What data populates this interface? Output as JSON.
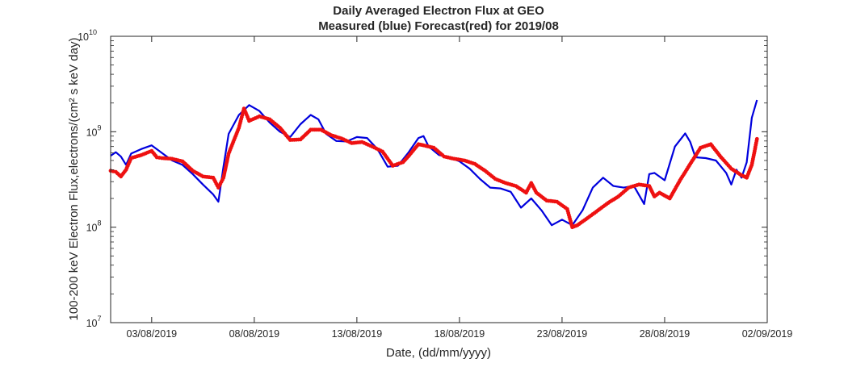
{
  "chart_data": {
    "type": "line",
    "title": "Daily Averaged Electron Flux at GEO",
    "subtitle": "Measured (blue) Forecast(red) for 2019/08",
    "xlabel": "Date, (dd/mm/yyyy)",
    "ylabel": "100-200 keV Electron Flux,electrons/(cm² s keV day)",
    "y_scale": "log",
    "ylim": [
      10000000,
      10000000000
    ],
    "xlim": [
      "2019-08-01",
      "2019-09-02"
    ],
    "grid": false,
    "x_ticks": [
      {
        "date": "2019-08-03",
        "label": "03/08/2019"
      },
      {
        "date": "2019-08-08",
        "label": "08/08/2019"
      },
      {
        "date": "2019-08-13",
        "label": "13/08/2019"
      },
      {
        "date": "2019-08-18",
        "label": "18/08/2019"
      },
      {
        "date": "2019-08-23",
        "label": "23/08/2019"
      },
      {
        "date": "2019-08-28",
        "label": "28/08/2019"
      },
      {
        "date": "2019-09-02",
        "label": "02/09/2019"
      }
    ],
    "y_ticks": [
      {
        "value": 10000000,
        "base": "10",
        "exp": "7"
      },
      {
        "value": 100000000,
        "base": "10",
        "exp": "8"
      },
      {
        "value": 1000000000,
        "base": "10",
        "exp": "9"
      },
      {
        "value": 10000000000,
        "base": "10",
        "exp": "10"
      }
    ],
    "series": [
      {
        "color": "#0000dd",
        "style": "line",
        "points": [
          [
            "2019-08-01 00:00",
            560000000.0
          ],
          [
            "2019-08-01 06:00",
            610000000.0
          ],
          [
            "2019-08-01 12:00",
            550000000.0
          ],
          [
            "2019-08-01 18:00",
            450000000.0
          ],
          [
            "2019-08-02 00:00",
            590000000.0
          ],
          [
            "2019-08-02 12:00",
            660000000.0
          ],
          [
            "2019-08-03 00:00",
            720000000.0
          ],
          [
            "2019-08-03 12:00",
            600000000.0
          ],
          [
            "2019-08-04 00:00",
            500000000.0
          ],
          [
            "2019-08-04 12:00",
            450000000.0
          ],
          [
            "2019-08-05 00:00",
            360000000.0
          ],
          [
            "2019-08-05 12:00",
            280000000.0
          ],
          [
            "2019-08-06 00:00",
            220000000.0
          ],
          [
            "2019-08-06 06:00",
            185000000.0
          ],
          [
            "2019-08-06 12:00",
            430000000.0
          ],
          [
            "2019-08-06 18:00",
            950000000.0
          ],
          [
            "2019-08-07 06:00",
            1500000000.0
          ],
          [
            "2019-08-07 18:00",
            1900000000.0
          ],
          [
            "2019-08-08 06:00",
            1650000000.0
          ],
          [
            "2019-08-08 18:00",
            1250000000.0
          ],
          [
            "2019-08-09 06:00",
            1000000000.0
          ],
          [
            "2019-08-09 18:00",
            880000000.0
          ],
          [
            "2019-08-10 06:00",
            1200000000.0
          ],
          [
            "2019-08-10 18:00",
            1500000000.0
          ],
          [
            "2019-08-11 03:00",
            1350000000.0
          ],
          [
            "2019-08-11 12:00",
            950000000.0
          ],
          [
            "2019-08-12 00:00",
            800000000.0
          ],
          [
            "2019-08-12 12:00",
            790000000.0
          ],
          [
            "2019-08-13 00:00",
            880000000.0
          ],
          [
            "2019-08-13 12:00",
            860000000.0
          ],
          [
            "2019-08-14 00:00",
            660000000.0
          ],
          [
            "2019-08-14 12:00",
            430000000.0
          ],
          [
            "2019-08-15 00:00",
            440000000.0
          ],
          [
            "2019-08-15 12:00",
            600000000.0
          ],
          [
            "2019-08-16 00:00",
            860000000.0
          ],
          [
            "2019-08-16 06:00",
            900000000.0
          ],
          [
            "2019-08-16 12:00",
            700000000.0
          ],
          [
            "2019-08-17 00:00",
            570000000.0
          ],
          [
            "2019-08-17 12:00",
            540000000.0
          ],
          [
            "2019-08-18 00:00",
            490000000.0
          ],
          [
            "2019-08-18 12:00",
            410000000.0
          ],
          [
            "2019-08-19 00:00",
            320000000.0
          ],
          [
            "2019-08-19 12:00",
            260000000.0
          ],
          [
            "2019-08-20 00:00",
            255000000.0
          ],
          [
            "2019-08-20 12:00",
            235000000.0
          ],
          [
            "2019-08-21 00:00",
            160000000.0
          ],
          [
            "2019-08-21 12:00",
            200000000.0
          ],
          [
            "2019-08-22 00:00",
            150000000.0
          ],
          [
            "2019-08-22 12:00",
            105000000.0
          ],
          [
            "2019-08-23 00:00",
            120000000.0
          ],
          [
            "2019-08-23 12:00",
            105000000.0
          ],
          [
            "2019-08-24 00:00",
            150000000.0
          ],
          [
            "2019-08-24 12:00",
            260000000.0
          ],
          [
            "2019-08-25 00:00",
            330000000.0
          ],
          [
            "2019-08-25 12:00",
            270000000.0
          ],
          [
            "2019-08-26 00:00",
            260000000.0
          ],
          [
            "2019-08-26 12:00",
            270000000.0
          ],
          [
            "2019-08-27 00:00",
            175000000.0
          ],
          [
            "2019-08-27 06:00",
            360000000.0
          ],
          [
            "2019-08-27 12:00",
            370000000.0
          ],
          [
            "2019-08-28 00:00",
            310000000.0
          ],
          [
            "2019-08-28 12:00",
            700000000.0
          ],
          [
            "2019-08-29 00:00",
            960000000.0
          ],
          [
            "2019-08-29 06:00",
            780000000.0
          ],
          [
            "2019-08-29 12:00",
            540000000.0
          ],
          [
            "2019-08-30 00:00",
            530000000.0
          ],
          [
            "2019-08-30 12:00",
            500000000.0
          ],
          [
            "2019-08-31 00:00",
            370000000.0
          ],
          [
            "2019-08-31 06:00",
            280000000.0
          ],
          [
            "2019-08-31 12:00",
            400000000.0
          ],
          [
            "2019-08-31 18:00",
            330000000.0
          ],
          [
            "2019-09-01 00:00",
            480000000.0
          ],
          [
            "2019-09-01 06:00",
            1400000000.0
          ],
          [
            "2019-09-01 12:00",
            2150000000.0
          ]
        ]
      },
      {
        "color": "#ee1111",
        "style": "dots",
        "points": [
          [
            "2019-08-01 00:00",
            390000000.0
          ],
          [
            "2019-08-01 06:00",
            380000000.0
          ],
          [
            "2019-08-01 12:00",
            340000000.0
          ],
          [
            "2019-08-01 18:00",
            400000000.0
          ],
          [
            "2019-08-02 00:00",
            530000000.0
          ],
          [
            "2019-08-02 12:00",
            570000000.0
          ],
          [
            "2019-08-03 00:00",
            630000000.0
          ],
          [
            "2019-08-03 06:00",
            540000000.0
          ],
          [
            "2019-08-03 12:00",
            530000000.0
          ],
          [
            "2019-08-04 00:00",
            520000000.0
          ],
          [
            "2019-08-04 12:00",
            490000000.0
          ],
          [
            "2019-08-05 00:00",
            390000000.0
          ],
          [
            "2019-08-05 12:00",
            340000000.0
          ],
          [
            "2019-08-06 00:00",
            330000000.0
          ],
          [
            "2019-08-06 06:00",
            260000000.0
          ],
          [
            "2019-08-06 12:00",
            330000000.0
          ],
          [
            "2019-08-06 18:00",
            590000000.0
          ],
          [
            "2019-08-07 06:00",
            1100000000.0
          ],
          [
            "2019-08-07 12:00",
            1750000000.0
          ],
          [
            "2019-08-07 18:00",
            1300000000.0
          ],
          [
            "2019-08-08 06:00",
            1450000000.0
          ],
          [
            "2019-08-08 18:00",
            1350000000.0
          ],
          [
            "2019-08-09 06:00",
            1100000000.0
          ],
          [
            "2019-08-09 18:00",
            820000000.0
          ],
          [
            "2019-08-10 06:00",
            830000000.0
          ],
          [
            "2019-08-10 18:00",
            1050000000.0
          ],
          [
            "2019-08-11 06:00",
            1050000000.0
          ],
          [
            "2019-08-11 18:00",
            920000000.0
          ],
          [
            "2019-08-12 06:00",
            850000000.0
          ],
          [
            "2019-08-12 18:00",
            760000000.0
          ],
          [
            "2019-08-13 06:00",
            780000000.0
          ],
          [
            "2019-08-13 18:00",
            700000000.0
          ],
          [
            "2019-08-14 06:00",
            620000000.0
          ],
          [
            "2019-08-14 18:00",
            440000000.0
          ],
          [
            "2019-08-15 06:00",
            480000000.0
          ],
          [
            "2019-08-15 12:00",
            550000000.0
          ],
          [
            "2019-08-16 00:00",
            740000000.0
          ],
          [
            "2019-08-16 06:00",
            720000000.0
          ],
          [
            "2019-08-16 18:00",
            680000000.0
          ],
          [
            "2019-08-17 06:00",
            550000000.0
          ],
          [
            "2019-08-17 18:00",
            520000000.0
          ],
          [
            "2019-08-18 06:00",
            500000000.0
          ],
          [
            "2019-08-18 18:00",
            460000000.0
          ],
          [
            "2019-08-19 06:00",
            390000000.0
          ],
          [
            "2019-08-19 18:00",
            320000000.0
          ],
          [
            "2019-08-20 06:00",
            290000000.0
          ],
          [
            "2019-08-20 18:00",
            270000000.0
          ],
          [
            "2019-08-21 06:00",
            230000000.0
          ],
          [
            "2019-08-21 12:00",
            290000000.0
          ],
          [
            "2019-08-21 18:00",
            230000000.0
          ],
          [
            "2019-08-22 06:00",
            190000000.0
          ],
          [
            "2019-08-22 18:00",
            185000000.0
          ],
          [
            "2019-08-23 06:00",
            155000000.0
          ],
          [
            "2019-08-23 12:00",
            100000000.0
          ],
          [
            "2019-08-23 18:00",
            105000000.0
          ],
          [
            "2019-08-24 06:00",
            125000000.0
          ],
          [
            "2019-08-24 18:00",
            150000000.0
          ],
          [
            "2019-08-25 06:00",
            180000000.0
          ],
          [
            "2019-08-25 18:00",
            210000000.0
          ],
          [
            "2019-08-26 06:00",
            260000000.0
          ],
          [
            "2019-08-26 18:00",
            280000000.0
          ],
          [
            "2019-08-27 06:00",
            270000000.0
          ],
          [
            "2019-08-27 12:00",
            210000000.0
          ],
          [
            "2019-08-27 18:00",
            230000000.0
          ],
          [
            "2019-08-28 06:00",
            200000000.0
          ],
          [
            "2019-08-28 18:00",
            310000000.0
          ],
          [
            "2019-08-29 06:00",
            460000000.0
          ],
          [
            "2019-08-29 18:00",
            680000000.0
          ],
          [
            "2019-08-30 06:00",
            740000000.0
          ],
          [
            "2019-08-30 18:00",
            540000000.0
          ],
          [
            "2019-08-31 06:00",
            410000000.0
          ],
          [
            "2019-08-31 18:00",
            350000000.0
          ],
          [
            "2019-09-01 00:00",
            330000000.0
          ],
          [
            "2019-09-01 06:00",
            450000000.0
          ],
          [
            "2019-09-01 12:00",
            840000000.0
          ]
        ]
      }
    ]
  }
}
